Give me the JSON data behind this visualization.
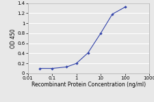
{
  "x": [
    0.032,
    0.1,
    0.4,
    1,
    3,
    10,
    30,
    100
  ],
  "y": [
    0.1,
    0.1,
    0.13,
    0.2,
    0.41,
    0.8,
    1.18,
    1.32
  ],
  "line_color": "#3344aa",
  "marker": "D",
  "marker_size": 2.2,
  "marker_color": "#3344aa",
  "xlabel": "Recombinant Protein Concentration (ng/ml)",
  "ylabel": "OD 450",
  "xlim": [
    0.01,
    1000
  ],
  "ylim": [
    0,
    1.4
  ],
  "yticks": [
    0,
    0.2,
    0.4,
    0.6,
    0.8,
    1.0,
    1.2,
    1.4
  ],
  "ytick_labels": [
    "0",
    "0.2",
    "0.4",
    "0.6",
    "0.8",
    "1",
    "1.2",
    "1.4"
  ],
  "xtick_positions": [
    0.01,
    0.1,
    1,
    10,
    100,
    1000
  ],
  "xtick_labels": [
    "0.01",
    "0.1",
    "1",
    "10",
    "100",
    "1000"
  ],
  "axis_fontsize": 5.5,
  "tick_fontsize": 5.0,
  "background_color": "#e8e8e8",
  "plot_bg": "#e8e8e8",
  "grid_color": "#ffffff",
  "spine_color": "#aaaaaa"
}
